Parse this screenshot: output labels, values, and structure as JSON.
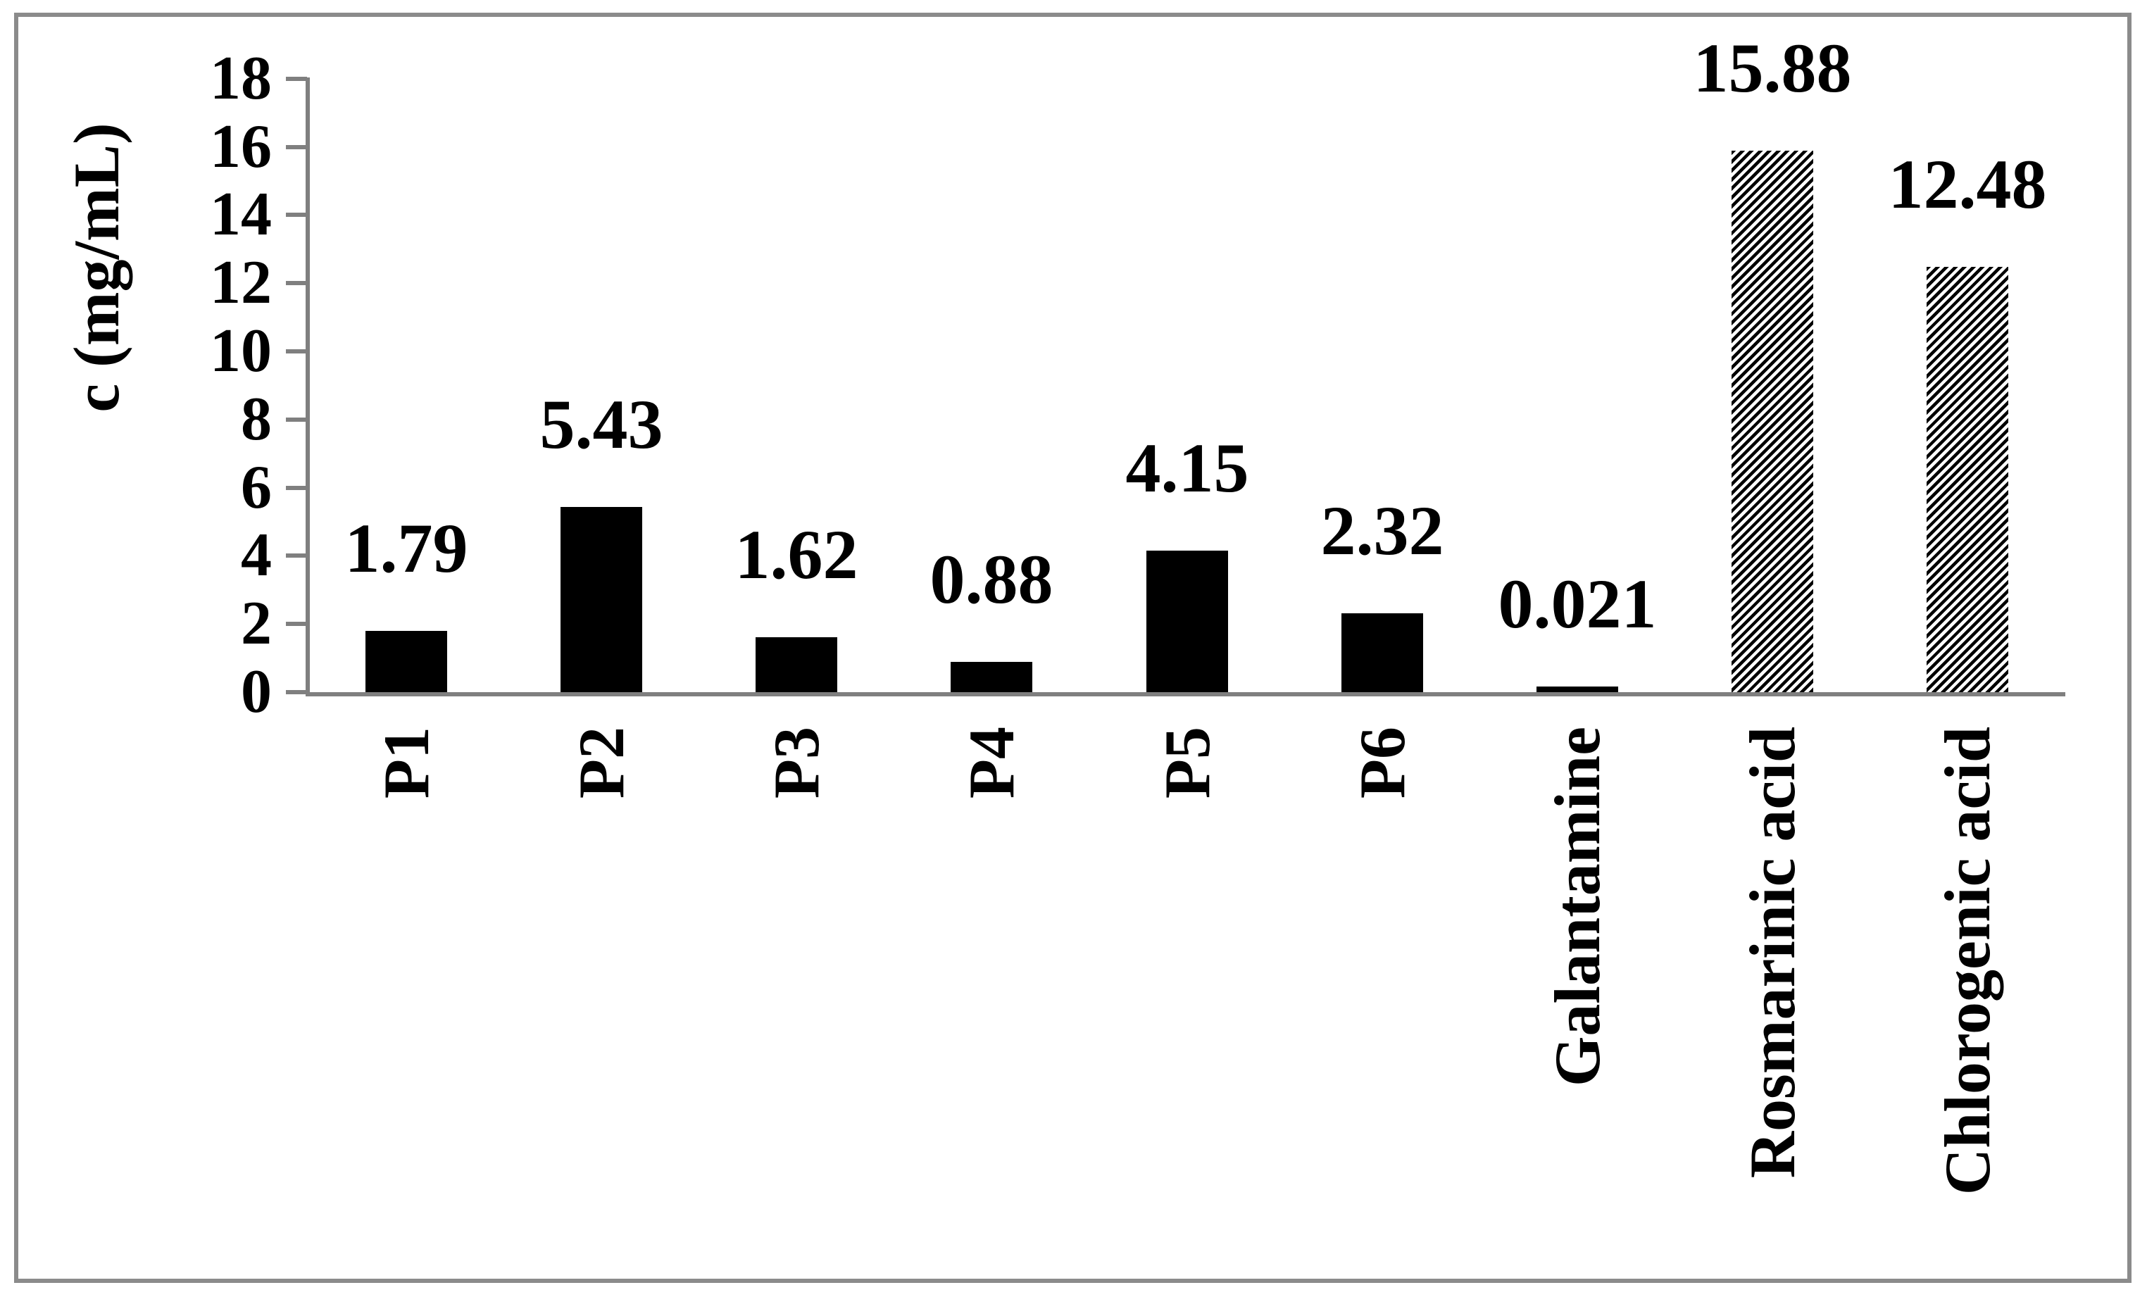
{
  "chart_data": {
    "type": "bar",
    "title": "",
    "xlabel": "",
    "ylabel": "c (mg/mL)",
    "ylim": [
      0,
      18
    ],
    "yticks": [
      0,
      2,
      4,
      6,
      8,
      10,
      12,
      14,
      16,
      18
    ],
    "grid": false,
    "legend": "none",
    "categories": [
      "P1",
      "P2",
      "P3",
      "P4",
      "P5",
      "P6",
      "Galantamine",
      "Rosmarinic acid",
      "Chlorogenic acid"
    ],
    "values": [
      1.79,
      5.43,
      1.62,
      0.88,
      4.15,
      2.32,
      0.021,
      15.88,
      12.48
    ],
    "value_labels": [
      "1.79",
      "5.43",
      "1.62",
      "0.88",
      "4.15",
      "2.32",
      "0.021",
      "15.88",
      "12.48"
    ],
    "bar_styles": [
      "solid",
      "solid",
      "solid",
      "solid",
      "solid",
      "solid",
      "solid",
      "hatch",
      "hatch"
    ],
    "colors": {
      "bar_fill": "#000000",
      "hatch_fill": "#000000",
      "axis_line": "#7f7f7f",
      "frame_border": "#8b8b8b",
      "text": "#000000",
      "background": "#ffffff"
    }
  }
}
